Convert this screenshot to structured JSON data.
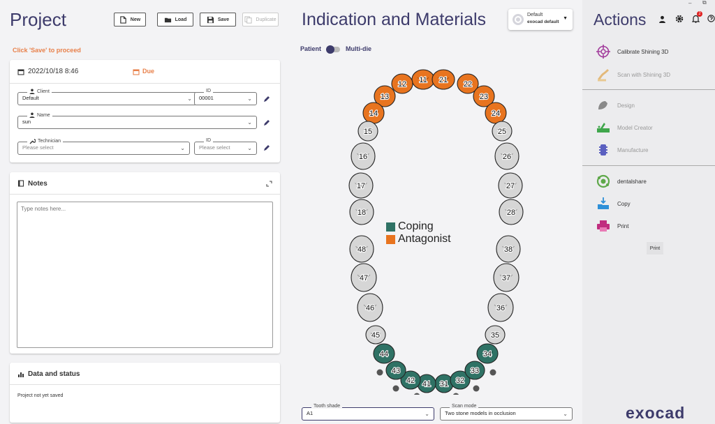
{
  "project": {
    "title": "Project",
    "toolbar": {
      "new_label": "New",
      "load_label": "Load",
      "save_label": "Save",
      "duplicate_label": "Duplicate"
    },
    "proceed_hint": "Click 'Save' to proceed",
    "date": "2022/10/18 8:46",
    "due_label": "Due",
    "client": {
      "legend": "Client",
      "value": "Default",
      "id_legend": "ID",
      "id_value": "00001"
    },
    "name": {
      "legend": "Name",
      "value": "sun"
    },
    "technician": {
      "legend": "Technician",
      "placeholder": "Please select",
      "id_legend": "ID",
      "id_placeholder": "Please select"
    },
    "notes": {
      "title": "Notes",
      "placeholder": "Type notes here..."
    },
    "data_status": {
      "title": "Data and status",
      "status_text": "Project not yet saved"
    }
  },
  "indication": {
    "title": "Indication and Materials",
    "profile": {
      "line1": "Default",
      "line2": "exocad default"
    },
    "toggle": {
      "left_label": "Patient",
      "right_label": "Multi-die"
    },
    "legend": [
      {
        "label": "Coping",
        "color": "#2f7265"
      },
      {
        "label": "Antagonist",
        "color": "#e8741f"
      }
    ],
    "tooth_colors": {
      "antagonist": "#e8741f",
      "coping": "#2f7265",
      "none": "#d6d6d6"
    },
    "teeth": [
      {
        "n": "11",
        "state": "antagonist"
      },
      {
        "n": "12",
        "state": "antagonist"
      },
      {
        "n": "13",
        "state": "antagonist"
      },
      {
        "n": "14",
        "state": "antagonist"
      },
      {
        "n": "15",
        "state": "none"
      },
      {
        "n": "16",
        "state": "none"
      },
      {
        "n": "17",
        "state": "none"
      },
      {
        "n": "18",
        "state": "none"
      },
      {
        "n": "21",
        "state": "antagonist"
      },
      {
        "n": "22",
        "state": "antagonist"
      },
      {
        "n": "23",
        "state": "antagonist"
      },
      {
        "n": "24",
        "state": "antagonist"
      },
      {
        "n": "25",
        "state": "none"
      },
      {
        "n": "26",
        "state": "none"
      },
      {
        "n": "27",
        "state": "none"
      },
      {
        "n": "28",
        "state": "none"
      },
      {
        "n": "31",
        "state": "coping"
      },
      {
        "n": "32",
        "state": "coping"
      },
      {
        "n": "33",
        "state": "coping"
      },
      {
        "n": "34",
        "state": "coping"
      },
      {
        "n": "35",
        "state": "none"
      },
      {
        "n": "36",
        "state": "none"
      },
      {
        "n": "37",
        "state": "none"
      },
      {
        "n": "38",
        "state": "none"
      },
      {
        "n": "41",
        "state": "coping"
      },
      {
        "n": "42",
        "state": "coping"
      },
      {
        "n": "43",
        "state": "coping"
      },
      {
        "n": "44",
        "state": "coping"
      },
      {
        "n": "45",
        "state": "none"
      },
      {
        "n": "46",
        "state": "none"
      },
      {
        "n": "47",
        "state": "none"
      },
      {
        "n": "48",
        "state": "none"
      }
    ],
    "tooth_shade": {
      "legend": "Tooth shade",
      "value": "A1"
    },
    "scan_mode": {
      "legend": "Scan mode",
      "value": "Two stone models in occlusion"
    }
  },
  "actions": {
    "title": "Actions",
    "notification_count": "2",
    "items": [
      {
        "label": "Calibrate Shining 3D",
        "icon": "target-icon",
        "enabled": true
      },
      {
        "label": "Scan with Shining 3D",
        "icon": "scan-hand-icon",
        "enabled": false
      },
      {
        "label": "Design",
        "icon": "tooth-design-icon",
        "enabled": false
      },
      {
        "label": "Model Creator",
        "icon": "model-creator-icon",
        "enabled": false
      },
      {
        "label": "Manufacture",
        "icon": "manufacture-icon",
        "enabled": false
      },
      {
        "label": "dentalshare",
        "icon": "dentalshare-icon",
        "enabled": true
      },
      {
        "label": "Copy",
        "icon": "copy-folder-icon",
        "enabled": true
      },
      {
        "label": "Print",
        "icon": "printer-icon",
        "enabled": true
      }
    ],
    "print_button": "Print",
    "brand": "exocad"
  }
}
